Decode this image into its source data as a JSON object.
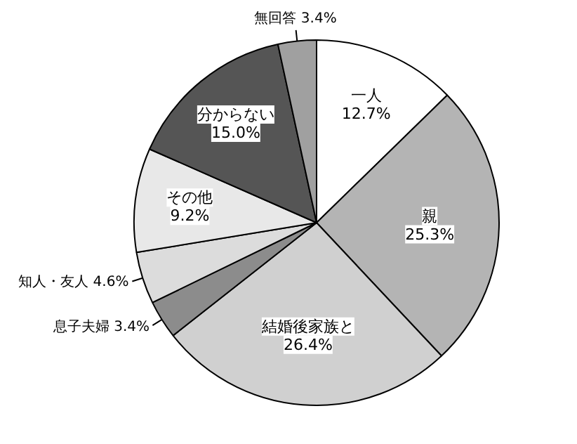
{
  "chart_data": {
    "type": "pie",
    "categories": [
      "一人",
      "親",
      "結婚後家族と",
      "息子夫婦",
      "知人・友人",
      "その他",
      "分からない",
      "無回答"
    ],
    "values": [
      12.7,
      25.3,
      26.4,
      3.4,
      4.6,
      9.2,
      15.0,
      3.4
    ],
    "value_labels": [
      "12.7%",
      "25.3%",
      "26.4%",
      "3.4%",
      "4.6%",
      "9.2%",
      "15.0%",
      "3.4%"
    ],
    "colors": [
      "#ffffff",
      "#b4b4b4",
      "#d0d0d0",
      "#8c8c8c",
      "#dcdcdc",
      "#e8e8e8",
      "#555555",
      "#a0a0a0"
    ]
  }
}
